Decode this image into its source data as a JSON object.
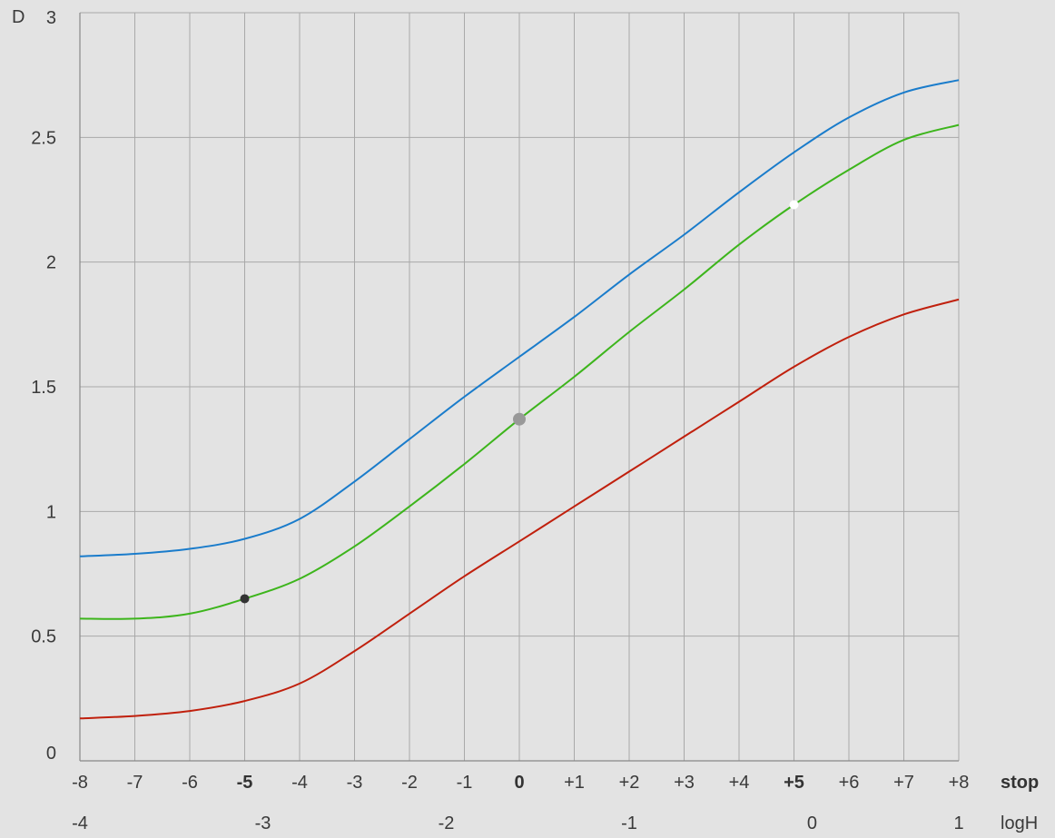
{
  "chart_data": {
    "type": "line",
    "ylabel": "D",
    "ylim": [
      0,
      3
    ],
    "xlim": [
      -8,
      8
    ],
    "yticks": [
      {
        "value": 0,
        "label": "0"
      },
      {
        "value": 0.5,
        "label": "0.5"
      },
      {
        "value": 1,
        "label": "1"
      },
      {
        "value": 1.5,
        "label": "1.5"
      },
      {
        "value": 2,
        "label": "2"
      },
      {
        "value": 2.5,
        "label": "2.5"
      },
      {
        "value": 3,
        "label": "3"
      }
    ],
    "stop_axis": {
      "label": "stop",
      "ticks": [
        {
          "value": -8,
          "label": "-8"
        },
        {
          "value": -7,
          "label": "-7"
        },
        {
          "value": -6,
          "label": "-6"
        },
        {
          "value": -5,
          "label": "-5",
          "bold": true
        },
        {
          "value": -4,
          "label": "-4"
        },
        {
          "value": -3,
          "label": "-3"
        },
        {
          "value": -2,
          "label": "-2"
        },
        {
          "value": -1,
          "label": "-1"
        },
        {
          "value": 0,
          "label": "0",
          "bold": true
        },
        {
          "value": 1,
          "label": "+1"
        },
        {
          "value": 2,
          "label": "+2"
        },
        {
          "value": 3,
          "label": "+3"
        },
        {
          "value": 4,
          "label": "+4"
        },
        {
          "value": 5,
          "label": "+5",
          "bold": true
        },
        {
          "value": 6,
          "label": "+6"
        },
        {
          "value": 7,
          "label": "+7"
        },
        {
          "value": 8,
          "label": "+8"
        }
      ]
    },
    "logH_axis": {
      "label": "logH",
      "ticks": [
        {
          "value": -8,
          "label": "-4"
        },
        {
          "value": -4.67,
          "label": "-3"
        },
        {
          "value": -1.33,
          "label": "-2"
        },
        {
          "value": 2,
          "label": "-1"
        },
        {
          "value": 5.33,
          "label": "0"
        },
        {
          "value": 8,
          "label": "1"
        }
      ]
    },
    "grid": true,
    "series": [
      {
        "color": "#1a7ccb",
        "x": [
          -8,
          -7,
          -6,
          -5,
          -4,
          -3,
          -2,
          -1,
          0,
          1,
          2,
          3,
          4,
          5,
          6,
          7,
          8
        ],
        "y": [
          0.82,
          0.83,
          0.85,
          0.89,
          0.97,
          1.12,
          1.29,
          1.46,
          1.62,
          1.78,
          1.95,
          2.11,
          2.28,
          2.44,
          2.58,
          2.68,
          2.73
        ]
      },
      {
        "color": "#3db51c",
        "x": [
          -8,
          -7,
          -6,
          -5,
          -4,
          -3,
          -2,
          -1,
          0,
          1,
          2,
          3,
          4,
          5,
          6,
          7,
          8
        ],
        "y": [
          0.57,
          0.57,
          0.59,
          0.65,
          0.73,
          0.86,
          1.02,
          1.19,
          1.37,
          1.54,
          1.72,
          1.89,
          2.07,
          2.23,
          2.37,
          2.49,
          2.55
        ]
      },
      {
        "color": "#c0200d",
        "x": [
          -8,
          -7,
          -6,
          -5,
          -4,
          -3,
          -2,
          -1,
          0,
          1,
          2,
          3,
          4,
          5,
          6,
          7,
          8
        ],
        "y": [
          0.17,
          0.18,
          0.2,
          0.24,
          0.31,
          0.44,
          0.59,
          0.74,
          0.88,
          1.02,
          1.16,
          1.3,
          1.44,
          1.58,
          1.7,
          1.79,
          1.85
        ]
      }
    ],
    "markers": [
      {
        "x": -5,
        "y": 0.65,
        "color": "#333333",
        "r": 5
      },
      {
        "x": 0,
        "y": 1.37,
        "color": "#999999",
        "r": 7
      },
      {
        "x": 5,
        "y": 2.23,
        "color": "#ffffff",
        "r": 5
      }
    ]
  }
}
